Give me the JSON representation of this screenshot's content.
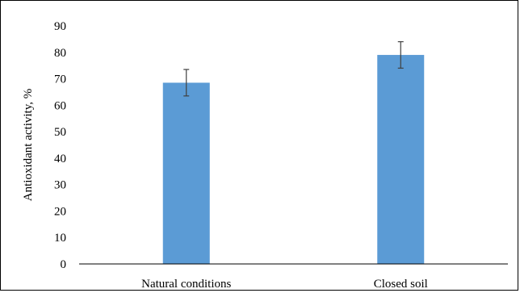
{
  "chart_data": {
    "type": "bar",
    "categories": [
      "Natural conditions",
      "Closed soil"
    ],
    "values": [
      68.5,
      79
    ],
    "error": [
      5,
      5
    ],
    "xlabel": "",
    "ylabel": "Antioxidant activity, %",
    "ylim": [
      0,
      90
    ],
    "yticks": [
      "0",
      "10",
      "20",
      "30",
      "40",
      "50",
      "60",
      "70",
      "80",
      "90"
    ],
    "grid": false,
    "legend": "none",
    "colors": {
      "bar": "#5b9bd5",
      "error": "#404040",
      "axis": "#000000"
    }
  }
}
